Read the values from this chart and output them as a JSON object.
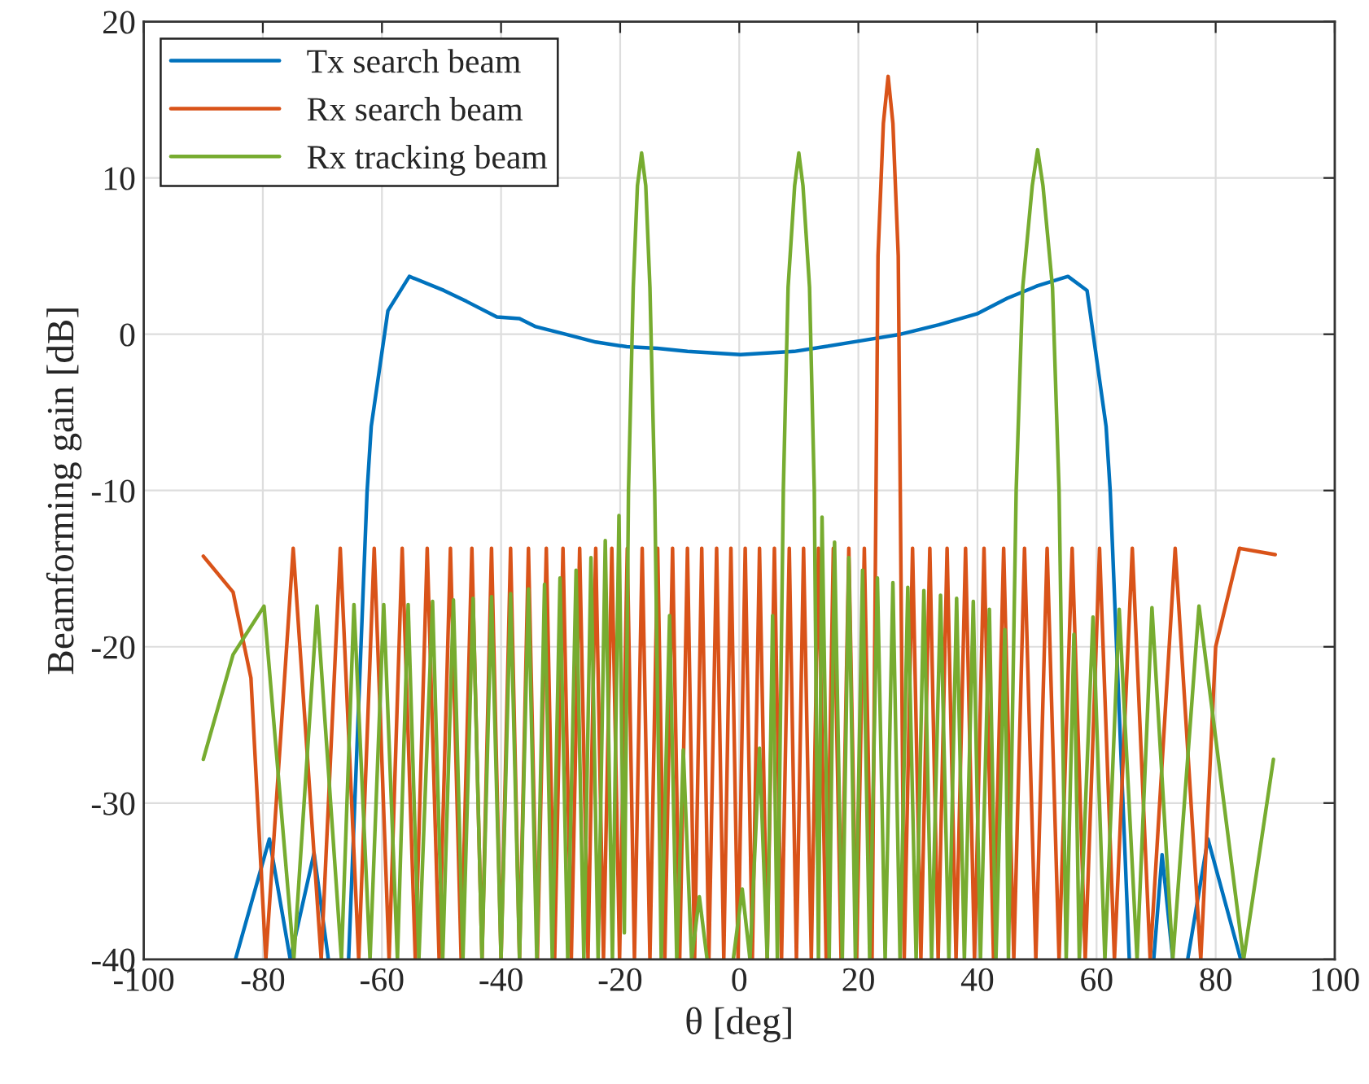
{
  "chart_data": {
    "type": "line",
    "xlabel": "θ [deg]",
    "ylabel": "Beamforming gain [dB]",
    "xlim": [
      -100,
      100
    ],
    "ylim": [
      -40,
      20
    ],
    "xticks": [
      -100,
      -80,
      -60,
      -40,
      -20,
      0,
      20,
      40,
      60,
      80,
      100
    ],
    "yticks": [
      -40,
      -30,
      -20,
      -10,
      0,
      10,
      20
    ],
    "grid": true,
    "legend": "top left",
    "line_style": "solid",
    "marker": "none",
    "series": [
      {
        "name": "Tx search beam",
        "color": "#0072bd",
        "x": [
          -84.6,
          -78.9,
          -75.4,
          -71.4,
          -69.0,
          -67.3,
          -65.6,
          -62.5,
          -61.8,
          -59,
          -55.4,
          -49.6,
          -45.8,
          -40.7,
          -36.9,
          -34.3,
          -29.2,
          -24.1,
          -18.9,
          -13.8,
          -8.7,
          0.2,
          9.2,
          14.3,
          20.7,
          27.1,
          33.5,
          39.9,
          45.0,
          50.1,
          55.2,
          58.4,
          61.6,
          62.3,
          65.5,
          67.5,
          69.6,
          71.0,
          72.8,
          74.0,
          75.3,
          78.7,
          84.2
        ],
        "values": [
          -40,
          -32.3,
          -40,
          -33.2,
          -40,
          null,
          -40,
          -10.1,
          -5.9,
          1.5,
          3.7,
          2.8,
          2.1,
          1.1,
          1.0,
          0.5,
          0.0,
          -0.5,
          -0.8,
          -0.9,
          -1.1,
          -1.3,
          -1.1,
          -0.8,
          -0.4,
          0.0,
          0.6,
          1.3,
          2.3,
          3.1,
          3.7,
          2.8,
          -5.9,
          -10.1,
          -40,
          null,
          -40,
          -33.3,
          -40,
          null,
          -40,
          -32.3,
          -40
        ]
      },
      {
        "name": "Rx search beam",
        "color": "#d95319",
        "x": [
          -90,
          -85,
          -82,
          -79.5,
          -74.9,
          -70.2,
          -67.0,
          -63.9,
          -61.3,
          -58.8,
          -56.6,
          -54.4,
          -52.4,
          -50.4,
          -48.5,
          -46.7,
          -44.9,
          -43.2,
          -41.6,
          -40.0,
          -38.4,
          -36.9,
          -35.4,
          -33.9,
          -32.4,
          -31.0,
          -29.6,
          -28.2,
          -26.8,
          -25.4,
          -24.1,
          -22.8,
          -21.4,
          -20.1,
          -18.8,
          -17.6,
          -16.3,
          -15.0,
          -13.7,
          -12.5,
          -11.2,
          -10.0,
          -8.7,
          -7.5,
          -6.3,
          -5.1,
          -3.8,
          -2.6,
          -1.4,
          -0.2,
          1.0,
          2.2,
          3.4,
          4.7,
          5.9,
          7.1,
          8.4,
          9.6,
          10.8,
          12.1,
          13.3,
          14.6,
          15.8,
          17.1,
          18.4,
          19.7,
          21.0,
          22.3,
          23.3,
          24.2,
          25.0,
          25.8,
          26.7,
          27.7,
          29.1,
          30.5,
          32.0,
          33.4,
          34.9,
          36.4,
          38.0,
          39.5,
          41.1,
          42.7,
          44.4,
          46.1,
          47.9,
          49.8,
          51.7,
          53.7,
          55.9,
          58.1,
          60.5,
          63.0,
          66.0,
          69.0,
          73.2,
          77.5,
          80,
          84,
          90
        ],
        "values": [
          -14.2,
          -16.5,
          -22,
          -40,
          -13.7,
          -40,
          -13.7,
          -40,
          -13.7,
          -40,
          -13.7,
          -40,
          -13.7,
          -40,
          -13.7,
          -40,
          -13.7,
          -40,
          -13.7,
          -40,
          -13.7,
          -40,
          -13.7,
          -40,
          -13.7,
          -40,
          -13.7,
          -40,
          -13.7,
          -40,
          -13.7,
          -40,
          -13.7,
          -40,
          -13.7,
          -40,
          -13.7,
          -40,
          -13.7,
          -40,
          -13.7,
          -40,
          -13.7,
          -40,
          -13.7,
          -40,
          -13.7,
          -40,
          -13.7,
          -40,
          -13.7,
          -40,
          -13.7,
          -40,
          -13.7,
          -40,
          -13.7,
          -40,
          -13.7,
          -40,
          -13.7,
          -40,
          -13.7,
          -40,
          -13.7,
          -40,
          -13.7,
          -40,
          5,
          13.5,
          16.5,
          13.5,
          5,
          -40,
          -13.7,
          -40,
          -13.7,
          -40,
          -13.7,
          -40,
          -13.7,
          -40,
          -13.7,
          -40,
          -13.7,
          -40,
          -13.7,
          -40,
          -13.7,
          -40,
          -13.7,
          -40,
          -13.7,
          -40,
          -13.7,
          -40,
          -13.7,
          -40,
          -20,
          -13.7,
          -14.1
        ]
      },
      {
        "name": "Rx tracking beam",
        "color": "#77ac30",
        "x": [
          -90,
          -85,
          -79.8,
          -74.8,
          -70.9,
          -66.8,
          -64.7,
          -62.0,
          -59.7,
          -57.4,
          -55.6,
          -53.8,
          -51.5,
          -49.8,
          -48.0,
          -46.4,
          -44.7,
          -43.2,
          -41.6,
          -40.0,
          -38.4,
          -36.9,
          -35.4,
          -34.0,
          -32.7,
          -31.4,
          -30.1,
          -28.8,
          -27.4,
          -26.1,
          -24.9,
          -23.7,
          -22.5,
          -21.3,
          -20.2,
          -19.3,
          -18.6,
          -17.8,
          -17.1,
          -16.4,
          -15.7,
          -15.0,
          -14.2,
          -13.1,
          -11.7,
          -10.5,
          -9.4,
          -8.0,
          -6.7,
          -5.4,
          -3.2,
          -1.0,
          0.5,
          1.8,
          3.4,
          4.7,
          5.6,
          6.4,
          7.4,
          8.2,
          9.3,
          10.0,
          10.7,
          11.8,
          12.6,
          13.3,
          13.9,
          15.1,
          16.0,
          17.3,
          18.4,
          19.5,
          20.7,
          21.9,
          23.2,
          24.5,
          25.8,
          27.0,
          28.3,
          29.7,
          31.0,
          32.3,
          33.8,
          35.2,
          36.5,
          37.8,
          39.3,
          40.5,
          42.0,
          43.1,
          44.6,
          45.2,
          46.5,
          47.6,
          49.2,
          50.1,
          51.0,
          52.6,
          53.7,
          54.9,
          56.2,
          57.1,
          59.4,
          61.4,
          63.8,
          66.8,
          69.3,
          72.8,
          77.2,
          84.7,
          89.7
        ],
        "values": [
          -27.2,
          -20.5,
          -17.4,
          -40,
          -17.4,
          -40,
          -17.3,
          -40,
          -17.3,
          -40,
          -17.3,
          -40,
          -17.1,
          -40,
          -17.0,
          -40,
          -16.9,
          -40,
          -16.8,
          -40,
          -16.6,
          -40,
          -16.3,
          -40,
          -16.0,
          -40,
          -15.6,
          -40,
          -15.1,
          -40,
          -14.3,
          -40,
          -13.2,
          -40,
          -11.6,
          -38.3,
          -10,
          3,
          9.5,
          11.6,
          9.5,
          3,
          -10,
          -40,
          -18.0,
          -40,
          -26.6,
          -40,
          -36.0,
          -40,
          null,
          -40,
          -35.5,
          -40,
          -26.5,
          -40,
          -18.0,
          -40,
          -10,
          3,
          9.5,
          11.6,
          9.5,
          3,
          -10,
          -40,
          -11.7,
          -40,
          -13.3,
          -40,
          -14.3,
          -40,
          -15.1,
          -40,
          -15.6,
          -40,
          -15.9,
          -40,
          -16.2,
          -40,
          -16.4,
          -40,
          -16.7,
          -40,
          -16.9,
          -40,
          -17.1,
          -40,
          -17.6,
          -40,
          -18.9,
          -40,
          -10,
          3,
          9.5,
          11.8,
          9.5,
          3,
          -10,
          -40,
          -19.2,
          -40,
          -18.1,
          -40,
          -17.6,
          -40,
          -17.5,
          -40,
          -17.4,
          -40,
          -27.2
        ]
      }
    ]
  }
}
